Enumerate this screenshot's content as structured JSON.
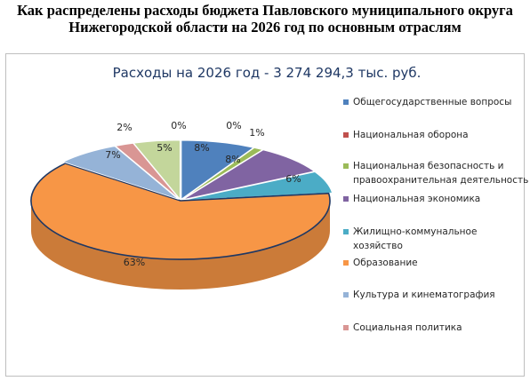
{
  "page_title": {
    "line1": "Как распределены расходы бюджета Павловского муниципального округа",
    "line2": "Нижегородской области на 2026 год по основным отраслям"
  },
  "chart_data": {
    "type": "pie",
    "title": "Расходы на 2026 год - 3 274 294,3 тыс. руб.",
    "style": "3d-exploded",
    "legend_position": "right",
    "series": [
      {
        "name": "Общегосударственные вопросы",
        "percent": 8,
        "label": "8%",
        "color": "#4f81bd"
      },
      {
        "name": "Национальная оборона",
        "percent": 0,
        "label": "0%",
        "color": "#c0504d"
      },
      {
        "name": "Национальная безопасность и правоохранительная деятельность",
        "percent": 1,
        "label": "1%",
        "color": "#9bbb59"
      },
      {
        "name": "Национальная экономика",
        "percent": 8,
        "label": "8%",
        "color": "#8064a2"
      },
      {
        "name": "Жилищно-коммунальное хозяйство",
        "percent": 6,
        "label": "6%",
        "color": "#4bacc6"
      },
      {
        "name": "Образование",
        "percent": 63,
        "label": "63%",
        "color": "#f79646"
      },
      {
        "name": "Культура и кинематография",
        "percent": 7,
        "label": "7%",
        "color": "#95b3d7"
      },
      {
        "name": "Социальная политика",
        "percent": 2,
        "label": "2%",
        "color": "#d99694"
      },
      {
        "name": "",
        "percent": 5,
        "label": "5%",
        "color": "#c3d69b"
      },
      {
        "name": "",
        "percent": 0,
        "label": "0%",
        "color": "#b2a1c7"
      }
    ],
    "legend": [
      {
        "lines": [
          "Общегосударственные вопросы"
        ],
        "color": "#4f81bd"
      },
      {
        "lines": [
          "Национальная оборона"
        ],
        "color": "#c0504d"
      },
      {
        "lines": [
          "Национальная безопасность и",
          "правоохранительная деятельность"
        ],
        "color": "#9bbb59"
      },
      {
        "lines": [
          "Национальная экономика"
        ],
        "color": "#8064a2"
      },
      {
        "lines": [
          "Жилищно-коммунальное",
          "хозяйство"
        ],
        "color": "#4bacc6"
      },
      {
        "lines": [
          "Образование"
        ],
        "color": "#f79646"
      },
      {
        "lines": [
          "Культура и кинематография"
        ],
        "color": "#95b3d7"
      },
      {
        "lines": [
          "Социальная политика"
        ],
        "color": "#d99694"
      }
    ]
  }
}
